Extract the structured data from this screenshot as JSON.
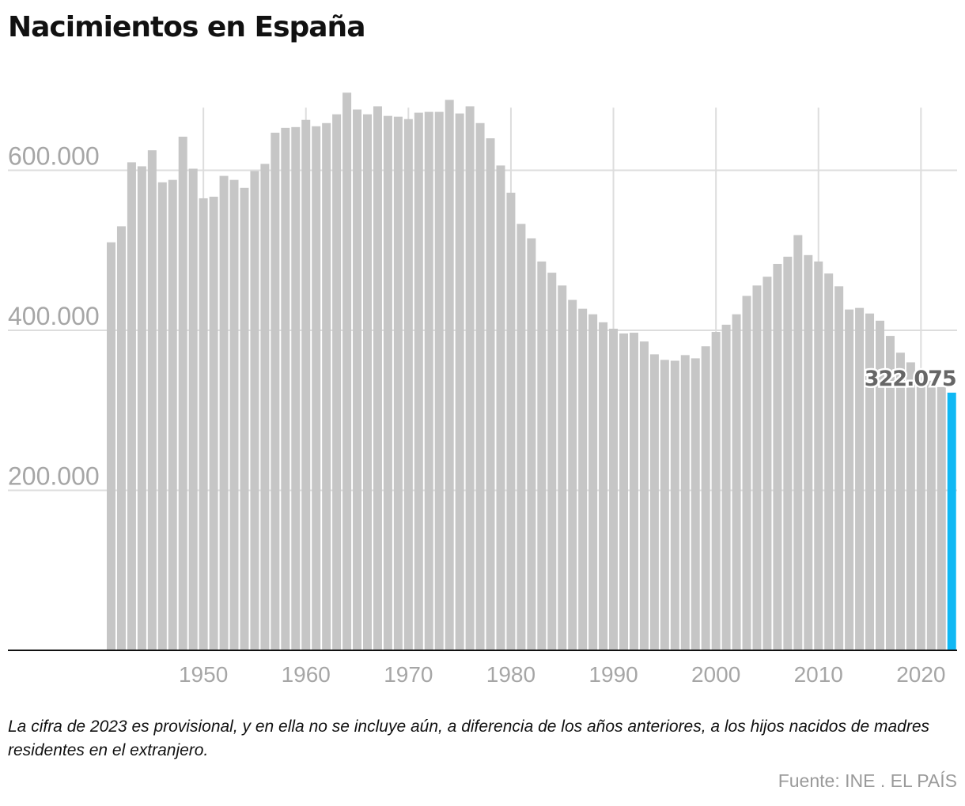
{
  "title": "Nacimientos en España",
  "note": "La cifra de 2023 es provisional, y en ella no se incluye aún, a diferencia de los años anteriores, a los hijos nacidos de madres residentes en el extranjero.",
  "source": "Fuente: INE . EL PAÍS",
  "colors": {
    "bar": "#c6c6c6",
    "highlight": "#10b8f4",
    "grid": "#dddddd",
    "axis_text": "#a6a6a6",
    "label": "#666666"
  },
  "chart_data": {
    "type": "bar",
    "title": "Nacimientos en España",
    "xlabel": "",
    "ylabel": "",
    "ylim": [
      0,
      700000
    ],
    "y_ticks": [
      200000,
      400000,
      600000
    ],
    "y_tick_labels": [
      "200.000",
      "400.000",
      "600.000"
    ],
    "x_ticks": [
      1950,
      1960,
      1970,
      1980,
      1990,
      2000,
      2010,
      2020
    ],
    "grid": true,
    "highlight": {
      "year": 2023,
      "value": 322075,
      "label": "322.075"
    },
    "years": [
      1941,
      1942,
      1943,
      1944,
      1945,
      1946,
      1947,
      1948,
      1949,
      1950,
      1951,
      1952,
      1953,
      1954,
      1955,
      1956,
      1957,
      1958,
      1959,
      1960,
      1961,
      1962,
      1963,
      1964,
      1965,
      1966,
      1967,
      1968,
      1969,
      1970,
      1971,
      1972,
      1973,
      1974,
      1975,
      1976,
      1977,
      1978,
      1979,
      1980,
      1981,
      1982,
      1983,
      1984,
      1985,
      1986,
      1987,
      1988,
      1989,
      1990,
      1991,
      1992,
      1993,
      1994,
      1995,
      1996,
      1997,
      1998,
      1999,
      2000,
      2001,
      2002,
      2003,
      2004,
      2005,
      2006,
      2007,
      2008,
      2009,
      2010,
      2011,
      2012,
      2013,
      2014,
      2015,
      2016,
      2017,
      2018,
      2019,
      2020,
      2021,
      2022,
      2023
    ],
    "values": [
      510000,
      530000,
      610000,
      605000,
      625000,
      585000,
      588000,
      642000,
      602000,
      565000,
      567000,
      593000,
      588000,
      578000,
      599000,
      608000,
      647000,
      653000,
      654000,
      663000,
      655000,
      659000,
      670000,
      697000,
      676000,
      670000,
      680000,
      668000,
      667000,
      664000,
      672000,
      673000,
      673000,
      688000,
      671000,
      680000,
      659000,
      640000,
      606000,
      572000,
      533000,
      515000,
      486000,
      472000,
      456000,
      438000,
      427000,
      420000,
      410000,
      402000,
      396000,
      397000,
      386000,
      370000,
      363000,
      362000,
      369000,
      365000,
      380000,
      398000,
      407000,
      420000,
      443000,
      456000,
      467000,
      483000,
      492000,
      519000,
      494000,
      486000,
      471000,
      455000,
      426000,
      428000,
      421000,
      412000,
      393000,
      372000,
      360000,
      341000,
      337000,
      329000,
      322075
    ]
  }
}
